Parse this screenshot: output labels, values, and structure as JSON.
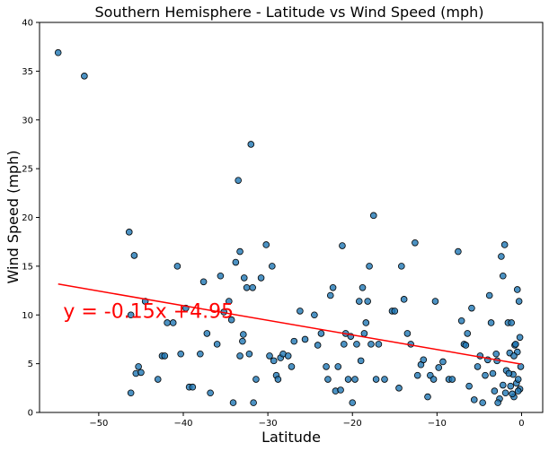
{
  "chart_data": {
    "type": "scatter",
    "title": "Southern Hemisphere - Latitude vs Wind Speed (mph)",
    "xlabel": "Latitude",
    "ylabel": "Wind Speed (mph)",
    "xlim": [
      -57,
      2.5
    ],
    "ylim": [
      0,
      40
    ],
    "xticks": [
      -50,
      -40,
      -30,
      -20,
      -10,
      0
    ],
    "xtick_labels": [
      "−50",
      "−40",
      "−30",
      "−20",
      "−10",
      "0"
    ],
    "yticks": [
      0,
      5,
      10,
      15,
      20,
      25,
      30,
      35,
      40
    ],
    "grid": false,
    "marker_color": "#1f77b4",
    "line_color": "#ff0000",
    "regression": {
      "slope": -0.15,
      "intercept": 4.95,
      "x_range": [
        -54.8,
        -0.1
      ]
    },
    "annotation": {
      "text": "y = -0.15x +4.95",
      "color": "#ff0000"
    },
    "points": [
      [
        -54.8,
        36.9
      ],
      [
        -51.7,
        34.5
      ],
      [
        -46.4,
        18.5
      ],
      [
        -45.8,
        16.1
      ],
      [
        -46.2,
        10.0
      ],
      [
        -46.2,
        2.0
      ],
      [
        -45.6,
        4.0
      ],
      [
        -45.3,
        4.7
      ],
      [
        -45.0,
        4.1
      ],
      [
        -44.5,
        11.4
      ],
      [
        -43.0,
        3.4
      ],
      [
        -42.5,
        5.8
      ],
      [
        -42.2,
        5.8
      ],
      [
        -41.9,
        9.2
      ],
      [
        -41.2,
        9.2
      ],
      [
        -40.7,
        15.0
      ],
      [
        -40.3,
        6.0
      ],
      [
        -39.7,
        10.7
      ],
      [
        -39.3,
        2.6
      ],
      [
        -38.9,
        2.6
      ],
      [
        -38.0,
        6.0
      ],
      [
        -37.6,
        13.4
      ],
      [
        -37.2,
        8.1
      ],
      [
        -36.8,
        2.0
      ],
      [
        -36.0,
        7.0
      ],
      [
        -35.6,
        14.0
      ],
      [
        -35.2,
        10.3
      ],
      [
        -34.6,
        11.4
      ],
      [
        -34.3,
        9.5
      ],
      [
        -34.1,
        1.0
      ],
      [
        -33.8,
        15.4
      ],
      [
        -33.5,
        23.8
      ],
      [
        -33.3,
        16.5
      ],
      [
        -33.3,
        5.8
      ],
      [
        -33.0,
        7.3
      ],
      [
        -32.9,
        8.0
      ],
      [
        -32.8,
        13.8
      ],
      [
        -32.5,
        12.8
      ],
      [
        -32.2,
        6.0
      ],
      [
        -32.0,
        27.5
      ],
      [
        -31.8,
        12.8
      ],
      [
        -31.7,
        1.0
      ],
      [
        -31.4,
        3.4
      ],
      [
        -30.8,
        13.8
      ],
      [
        -30.2,
        17.2
      ],
      [
        -29.8,
        5.8
      ],
      [
        -29.5,
        15.0
      ],
      [
        -29.3,
        5.3
      ],
      [
        -29.0,
        3.8
      ],
      [
        -28.8,
        3.4
      ],
      [
        -28.5,
        5.6
      ],
      [
        -28.2,
        6.0
      ],
      [
        -27.6,
        5.8
      ],
      [
        -27.2,
        4.7
      ],
      [
        -26.9,
        7.3
      ],
      [
        -26.2,
        10.4
      ],
      [
        -25.6,
        7.5
      ],
      [
        -24.5,
        10.0
      ],
      [
        -24.1,
        6.9
      ],
      [
        -23.7,
        8.1
      ],
      [
        -23.1,
        4.7
      ],
      [
        -22.9,
        3.4
      ],
      [
        -22.6,
        12.0
      ],
      [
        -22.3,
        12.8
      ],
      [
        -22.0,
        2.2
      ],
      [
        -21.7,
        4.7
      ],
      [
        -21.4,
        2.3
      ],
      [
        -21.2,
        17.1
      ],
      [
        -21.0,
        7.0
      ],
      [
        -20.8,
        8.1
      ],
      [
        -20.5,
        3.4
      ],
      [
        -20.2,
        7.8
      ],
      [
        -20.0,
        1.0
      ],
      [
        -19.7,
        3.4
      ],
      [
        -19.5,
        7.0
      ],
      [
        -19.2,
        11.4
      ],
      [
        -19.0,
        5.3
      ],
      [
        -18.8,
        12.8
      ],
      [
        -18.6,
        8.1
      ],
      [
        -18.4,
        9.2
      ],
      [
        -18.2,
        11.4
      ],
      [
        -18.0,
        15.0
      ],
      [
        -17.8,
        7.0
      ],
      [
        -17.5,
        20.2
      ],
      [
        -17.2,
        3.4
      ],
      [
        -16.9,
        7.0
      ],
      [
        -16.2,
        3.4
      ],
      [
        -15.3,
        10.4
      ],
      [
        -15.0,
        10.4
      ],
      [
        -14.5,
        2.5
      ],
      [
        -14.2,
        15.0
      ],
      [
        -13.9,
        11.6
      ],
      [
        -13.5,
        8.1
      ],
      [
        -13.1,
        7.0
      ],
      [
        -12.6,
        17.4
      ],
      [
        -12.3,
        3.8
      ],
      [
        -11.9,
        4.9
      ],
      [
        -11.6,
        5.4
      ],
      [
        -11.1,
        1.6
      ],
      [
        -10.8,
        3.8
      ],
      [
        -10.4,
        3.4
      ],
      [
        -10.2,
        11.4
      ],
      [
        -9.8,
        4.6
      ],
      [
        -9.3,
        5.2
      ],
      [
        -8.6,
        3.4
      ],
      [
        -8.2,
        3.4
      ],
      [
        -7.5,
        16.5
      ],
      [
        -7.1,
        9.4
      ],
      [
        -6.8,
        7.0
      ],
      [
        -6.6,
        6.9
      ],
      [
        -6.4,
        8.1
      ],
      [
        -6.2,
        2.7
      ],
      [
        -5.9,
        10.7
      ],
      [
        -5.6,
        1.3
      ],
      [
        -5.2,
        4.7
      ],
      [
        -4.9,
        5.8
      ],
      [
        -4.6,
        1.0
      ],
      [
        -4.3,
        3.8
      ],
      [
        -4.0,
        5.4
      ],
      [
        -3.8,
        12.0
      ],
      [
        -3.6,
        9.2
      ],
      [
        -3.4,
        4.0
      ],
      [
        -3.2,
        2.2
      ],
      [
        -2.9,
        5.3
      ],
      [
        -2.6,
        1.4
      ],
      [
        -2.4,
        16.0
      ],
      [
        -2.2,
        14.0
      ],
      [
        -2.0,
        17.2
      ],
      [
        -1.8,
        4.3
      ],
      [
        -1.6,
        9.2
      ],
      [
        -1.4,
        6.1
      ],
      [
        -1.2,
        9.2
      ],
      [
        -1.0,
        3.9
      ],
      [
        -0.8,
        6.9
      ],
      [
        -0.6,
        3.0
      ],
      [
        -0.4,
        3.4
      ],
      [
        -0.2,
        2.4
      ],
      [
        -2.8,
        1.0
      ],
      [
        -0.9,
        1.6
      ],
      [
        -0.5,
        6.2
      ],
      [
        -0.3,
        11.4
      ],
      [
        -0.7,
        7.0
      ],
      [
        -1.9,
        2.0
      ],
      [
        -1.1,
        1.9
      ],
      [
        -0.1,
        4.7
      ],
      [
        -0.5,
        12.6
      ],
      [
        -0.2,
        7.7
      ],
      [
        -2.2,
        2.8
      ],
      [
        -1.5,
        4.0
      ],
      [
        -0.9,
        5.8
      ],
      [
        -0.4,
        2.2
      ],
      [
        -1.3,
        2.7
      ],
      [
        -3.0,
        6.0
      ]
    ]
  }
}
